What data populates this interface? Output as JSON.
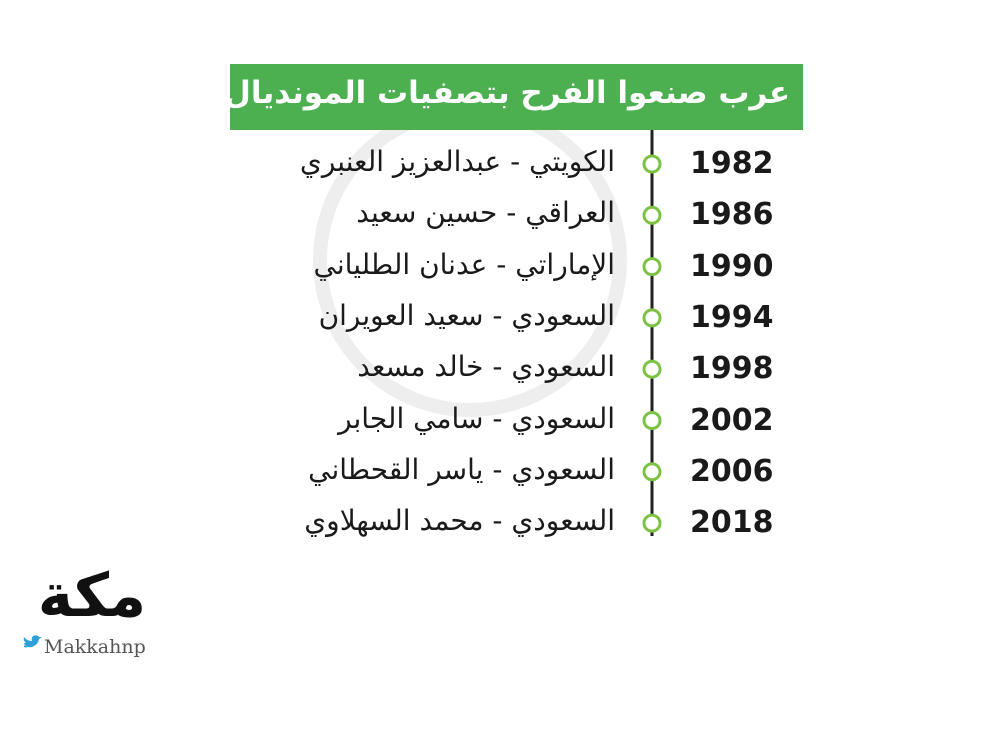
{
  "header": {
    "title": "عرب صنعوا الفرح بتصفيات المونديال"
  },
  "timeline": {
    "rows": [
      {
        "year": "1982",
        "name": "الكويتي - عبدالعزيز العنبري"
      },
      {
        "year": "1986",
        "name": "العراقي - حسين سعيد"
      },
      {
        "year": "1990",
        "name": "الإماراتي - عدنان الطلياني"
      },
      {
        "year": "1994",
        "name": "السعودي - سعيد العويران"
      },
      {
        "year": "1998",
        "name": "السعودي - خالد مسعد"
      },
      {
        "year": "2002",
        "name": "السعودي - سامي الجابر"
      },
      {
        "year": "2006",
        "name": "السعودي - ياسر القحطاني"
      },
      {
        "year": "2018",
        "name": "السعودي - محمد السهلاوي"
      }
    ]
  },
  "logo": {
    "name": "مكة",
    "handle": "Makkahnp"
  }
}
